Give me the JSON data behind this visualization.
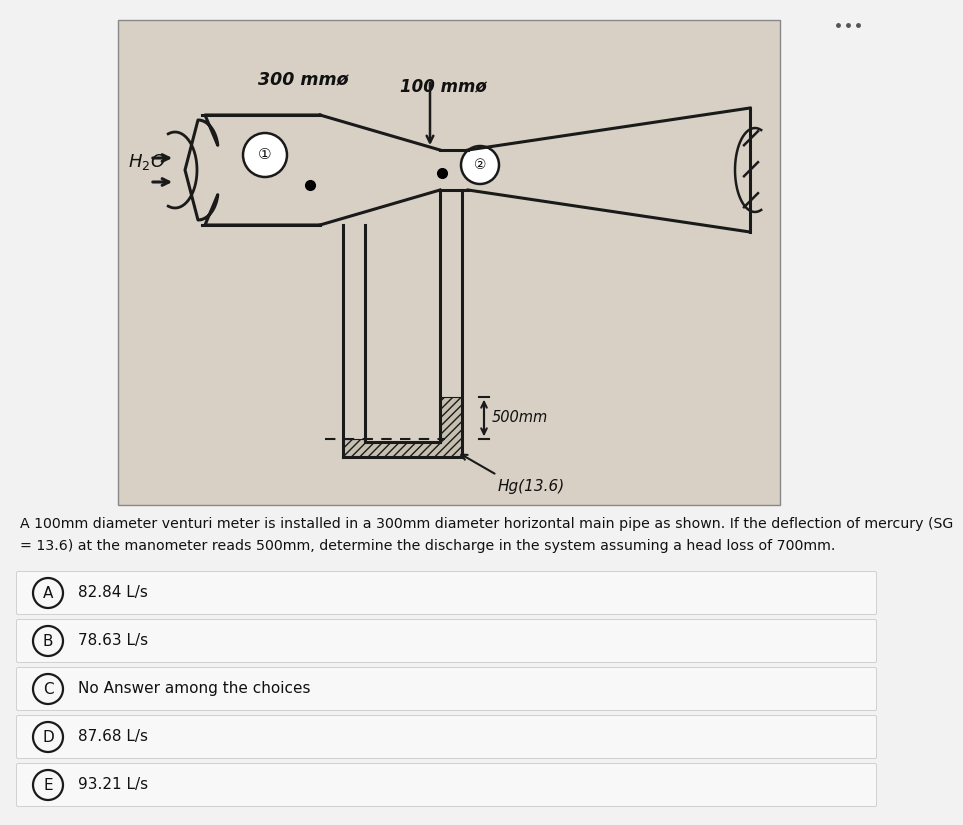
{
  "bg_color": "#f2f2f2",
  "image_bg": "#d8d0c4",
  "line_color": "#1a1a1a",
  "text_color": "#111111",
  "choice_bg": "#f8f8f8",
  "choice_border": "#d0d0d0",
  "hatch_color": "#333333",
  "dots_color": "#555555",
  "problem_text_line1": "A 100mm diameter venturi meter is installed in a 300mm diameter horizontal main pipe as shown. If the deflection of mercury (SG",
  "problem_text_line2": "= 13.6) at the manometer reads 500mm, determine the discharge in the system assuming a head loss of 700mm.",
  "choices": [
    {
      "label": "A",
      "text": "82.84 L/s"
    },
    {
      "label": "B",
      "text": "78.63 L/s"
    },
    {
      "label": "C",
      "text": "No Answer among the choices"
    },
    {
      "label": "D",
      "text": "87.68 L/s"
    },
    {
      "label": "E",
      "text": "93.21 L/s"
    }
  ]
}
